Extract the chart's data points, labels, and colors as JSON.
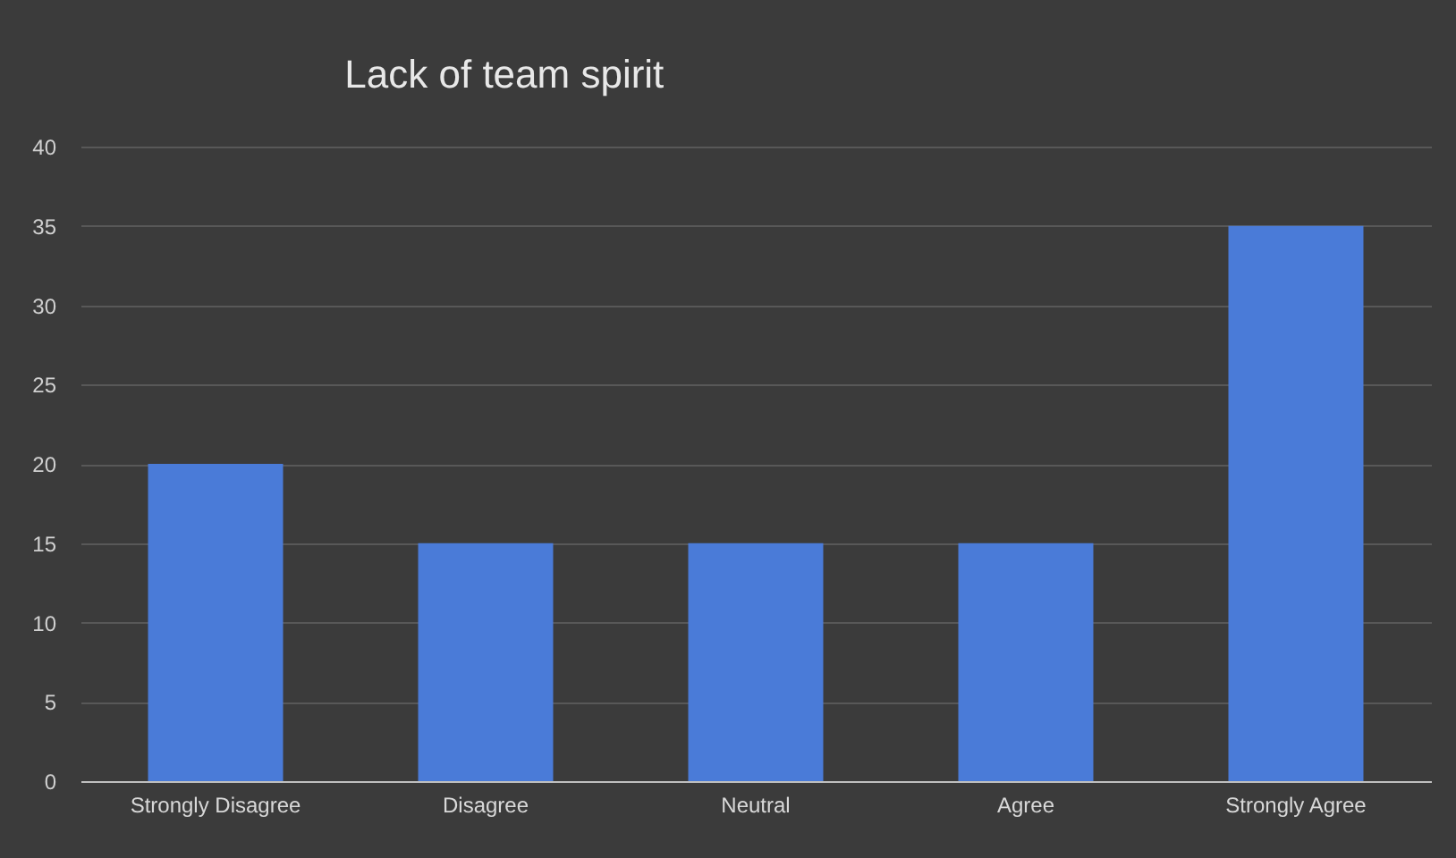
{
  "chart_data": {
    "type": "bar",
    "title": "Lack of team spirit",
    "categories": [
      "Strongly Disagree",
      "Disagree",
      "Neutral",
      "Agree",
      "Strongly Agree"
    ],
    "values": [
      20,
      15,
      15,
      15,
      35
    ],
    "color": "#4a7bd8",
    "ylim": [
      0,
      40
    ],
    "yticks": [
      0,
      5,
      10,
      15,
      20,
      25,
      30,
      35,
      40
    ],
    "grid": "y"
  }
}
